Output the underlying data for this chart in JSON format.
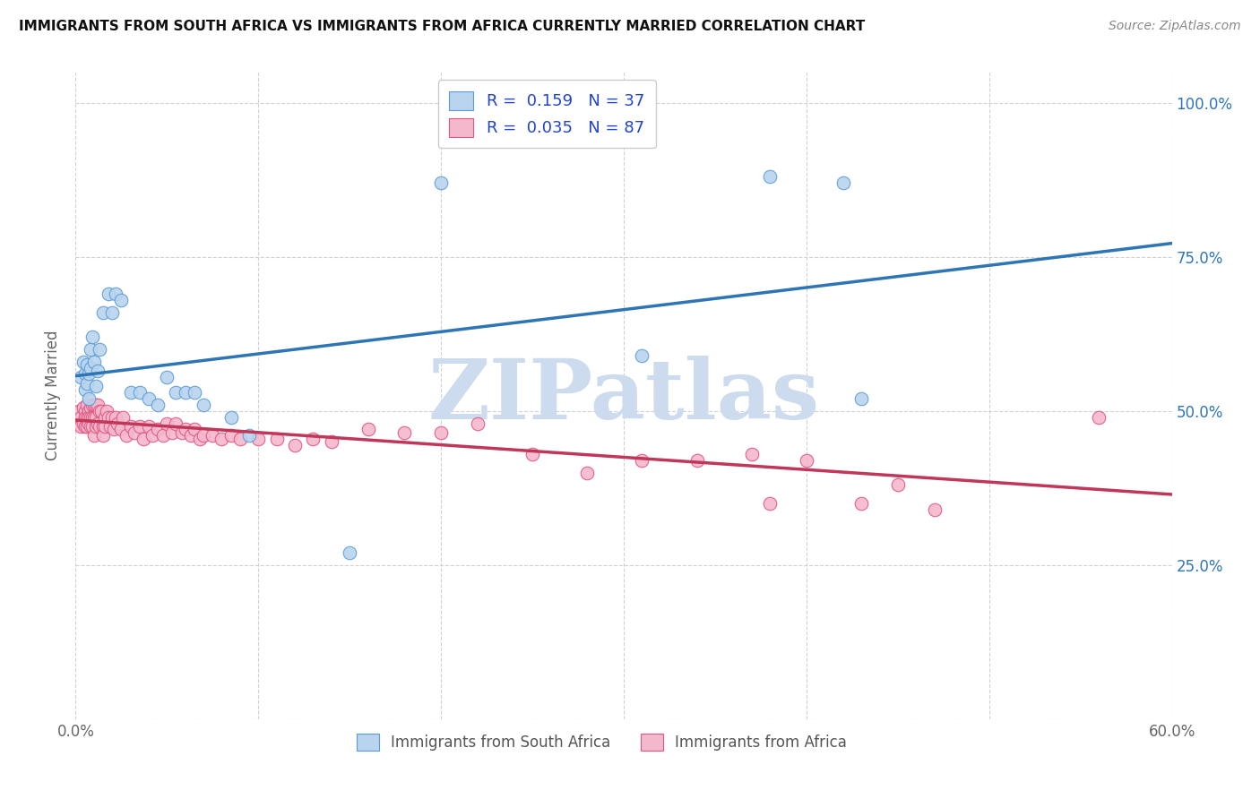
{
  "title": "IMMIGRANTS FROM SOUTH AFRICA VS IMMIGRANTS FROM AFRICA CURRENTLY MARRIED CORRELATION CHART",
  "source": "Source: ZipAtlas.com",
  "ylabel": "Currently Married",
  "x_min": 0.0,
  "x_max": 0.6,
  "y_min": 0.0,
  "y_max": 1.05,
  "series1_label": "Immigrants from South Africa",
  "series1_R": "0.159",
  "series1_N": "37",
  "series1_color": "#b8d4ee",
  "series1_edge_color": "#5b9bd5",
  "series1_line_color": "#2e75b6",
  "series2_label": "Immigrants from Africa",
  "series2_R": "0.035",
  "series2_N": "87",
  "series2_color": "#f4b8cc",
  "series2_edge_color": "#e05580",
  "series2_line_color": "#c0375a",
  "legend_text_color": "#2244cc",
  "watermark": "ZIPatlas",
  "watermark_color": "#ccdcee",
  "background_color": "#ffffff",
  "series1_x": [
    0.003,
    0.004,
    0.005,
    0.005,
    0.006,
    0.006,
    0.007,
    0.007,
    0.008,
    0.008,
    0.009,
    0.01,
    0.011,
    0.012,
    0.013,
    0.015,
    0.018,
    0.02,
    0.022,
    0.025,
    0.03,
    0.035,
    0.04,
    0.045,
    0.05,
    0.055,
    0.06,
    0.065,
    0.07,
    0.085,
    0.095,
    0.15,
    0.2,
    0.31,
    0.38,
    0.42,
    0.43
  ],
  "series1_y": [
    0.555,
    0.58,
    0.56,
    0.535,
    0.545,
    0.575,
    0.56,
    0.52,
    0.57,
    0.6,
    0.62,
    0.58,
    0.54,
    0.565,
    0.6,
    0.66,
    0.69,
    0.66,
    0.69,
    0.68,
    0.53,
    0.53,
    0.52,
    0.51,
    0.555,
    0.53,
    0.53,
    0.53,
    0.51,
    0.49,
    0.46,
    0.27,
    0.87,
    0.59,
    0.88,
    0.87,
    0.52
  ],
  "series2_x": [
    0.001,
    0.002,
    0.003,
    0.003,
    0.004,
    0.004,
    0.005,
    0.005,
    0.005,
    0.006,
    0.006,
    0.006,
    0.007,
    0.007,
    0.007,
    0.008,
    0.008,
    0.008,
    0.009,
    0.009,
    0.009,
    0.01,
    0.01,
    0.01,
    0.011,
    0.011,
    0.011,
    0.012,
    0.012,
    0.013,
    0.013,
    0.014,
    0.015,
    0.015,
    0.016,
    0.016,
    0.017,
    0.018,
    0.019,
    0.02,
    0.021,
    0.022,
    0.023,
    0.025,
    0.026,
    0.028,
    0.03,
    0.032,
    0.035,
    0.037,
    0.04,
    0.042,
    0.045,
    0.048,
    0.05,
    0.053,
    0.055,
    0.058,
    0.06,
    0.063,
    0.065,
    0.068,
    0.07,
    0.075,
    0.08,
    0.085,
    0.09,
    0.1,
    0.11,
    0.12,
    0.13,
    0.14,
    0.16,
    0.18,
    0.2,
    0.22,
    0.25,
    0.28,
    0.31,
    0.34,
    0.37,
    0.38,
    0.4,
    0.43,
    0.45,
    0.47,
    0.56
  ],
  "series2_y": [
    0.48,
    0.5,
    0.49,
    0.475,
    0.505,
    0.48,
    0.5,
    0.49,
    0.475,
    0.51,
    0.49,
    0.475,
    0.5,
    0.49,
    0.48,
    0.505,
    0.49,
    0.475,
    0.51,
    0.49,
    0.475,
    0.51,
    0.49,
    0.46,
    0.51,
    0.49,
    0.475,
    0.51,
    0.48,
    0.5,
    0.475,
    0.5,
    0.475,
    0.46,
    0.49,
    0.475,
    0.5,
    0.49,
    0.475,
    0.49,
    0.47,
    0.49,
    0.48,
    0.47,
    0.49,
    0.46,
    0.475,
    0.465,
    0.475,
    0.455,
    0.475,
    0.46,
    0.47,
    0.46,
    0.48,
    0.465,
    0.48,
    0.465,
    0.47,
    0.46,
    0.47,
    0.455,
    0.46,
    0.46,
    0.455,
    0.46,
    0.455,
    0.455,
    0.455,
    0.445,
    0.455,
    0.45,
    0.47,
    0.465,
    0.465,
    0.48,
    0.43,
    0.4,
    0.42,
    0.42,
    0.43,
    0.35,
    0.42,
    0.35,
    0.38,
    0.34,
    0.49
  ]
}
